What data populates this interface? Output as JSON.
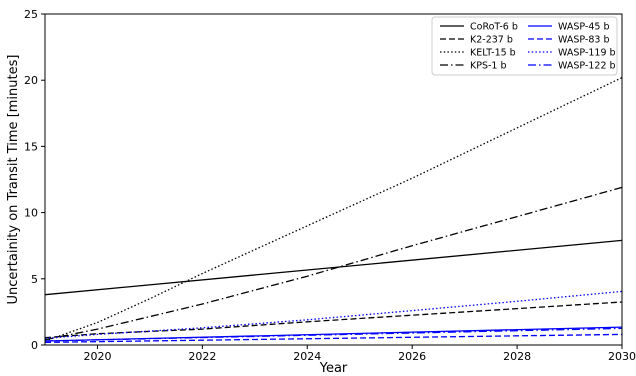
{
  "chart_data": {
    "type": "line",
    "title": "",
    "xlabel": "Year",
    "ylabel": "Uncertainity on Transit Time [minutes]",
    "xlim": [
      2019,
      2030
    ],
    "ylim": [
      0,
      25
    ],
    "xticks": [
      2020,
      2022,
      2024,
      2026,
      2028,
      2030
    ],
    "yticks": [
      0,
      5,
      10,
      15,
      20,
      25
    ],
    "grid": false,
    "legend_position": "top-right",
    "series": [
      {
        "name": "CoRoT-6 b",
        "color": "#000000",
        "dash": "solid",
        "x": [
          2019,
          2030
        ],
        "y": [
          3.8,
          7.9
        ]
      },
      {
        "name": "K2-237 b",
        "color": "#000000",
        "dash": "dashed",
        "x": [
          2019,
          2020,
          2022,
          2024,
          2026,
          2028,
          2030
        ],
        "y": [
          0.55,
          0.85,
          1.2,
          1.75,
          2.25,
          2.75,
          3.25
        ]
      },
      {
        "name": "KELT-15 b",
        "color": "#000000",
        "dash": "dotted",
        "x": [
          2019,
          2020,
          2021,
          2022,
          2024,
          2026,
          2028,
          2030
        ],
        "y": [
          0.3,
          1.7,
          3.5,
          5.4,
          9.0,
          12.6,
          16.4,
          20.2
        ]
      },
      {
        "name": "KPS-1 b",
        "color": "#000000",
        "dash": "dashdot",
        "x": [
          2019,
          2020,
          2022,
          2024,
          2026,
          2028,
          2030
        ],
        "y": [
          0.4,
          1.2,
          3.1,
          5.2,
          7.5,
          9.7,
          11.9
        ]
      },
      {
        "name": "WASP-45 b",
        "color": "#0000ff",
        "dash": "solid",
        "x": [
          2019,
          2030
        ],
        "y": [
          0.3,
          1.35
        ]
      },
      {
        "name": "WASP-83 b",
        "color": "#0000ff",
        "dash": "dashed",
        "x": [
          2019,
          2030
        ],
        "y": [
          0.2,
          0.8
        ]
      },
      {
        "name": "WASP-119 b",
        "color": "#0000ff",
        "dash": "dotted",
        "x": [
          2019,
          2020,
          2022,
          2024,
          2026,
          2028,
          2030
        ],
        "y": [
          0.5,
          0.8,
          1.3,
          1.9,
          2.6,
          3.3,
          4.05
        ]
      },
      {
        "name": "WASP-122 b",
        "color": "#0000ff",
        "dash": "dashdot",
        "x": [
          2019,
          2030
        ],
        "y": [
          0.3,
          1.25
        ]
      }
    ]
  }
}
